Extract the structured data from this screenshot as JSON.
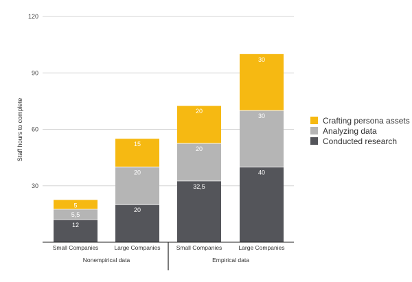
{
  "chart_data": {
    "type": "bar",
    "stacked": true,
    "ylabel": "Staff hours to complete",
    "ylim": [
      0,
      120
    ],
    "yticks": [
      "120",
      "90",
      "60",
      "30"
    ],
    "grid": true,
    "legend_position": "right",
    "categories": [
      "Small Companies",
      "Large Companies",
      "Small Companies",
      "Large Companies"
    ],
    "groups": [
      {
        "label": "Nonempirical data",
        "categories": [
          0,
          1
        ]
      },
      {
        "label": "Empirical data",
        "categories": [
          2,
          3
        ]
      }
    ],
    "series": [
      {
        "name": "Conducted research",
        "color": "#54555a",
        "values": [
          12,
          20,
          32.5,
          40
        ],
        "labels": [
          "12",
          "20",
          "32,5",
          "40"
        ]
      },
      {
        "name": "Analyzing data",
        "color": "#b5b5b5",
        "values": [
          5.5,
          20,
          20,
          30
        ],
        "labels": [
          "5,5",
          "20",
          "20",
          "30"
        ]
      },
      {
        "name": "Crafting persona assets",
        "color": "#f6b912",
        "values": [
          5,
          15,
          20,
          30
        ],
        "labels": [
          "5",
          "15",
          "20",
          "30"
        ]
      }
    ]
  },
  "legend": [
    {
      "label": "Crafting persona assets",
      "color": "#f6b912"
    },
    {
      "label": "Analyzing data",
      "color": "#b5b5b5"
    },
    {
      "label": "Conducted research",
      "color": "#54555a"
    }
  ]
}
